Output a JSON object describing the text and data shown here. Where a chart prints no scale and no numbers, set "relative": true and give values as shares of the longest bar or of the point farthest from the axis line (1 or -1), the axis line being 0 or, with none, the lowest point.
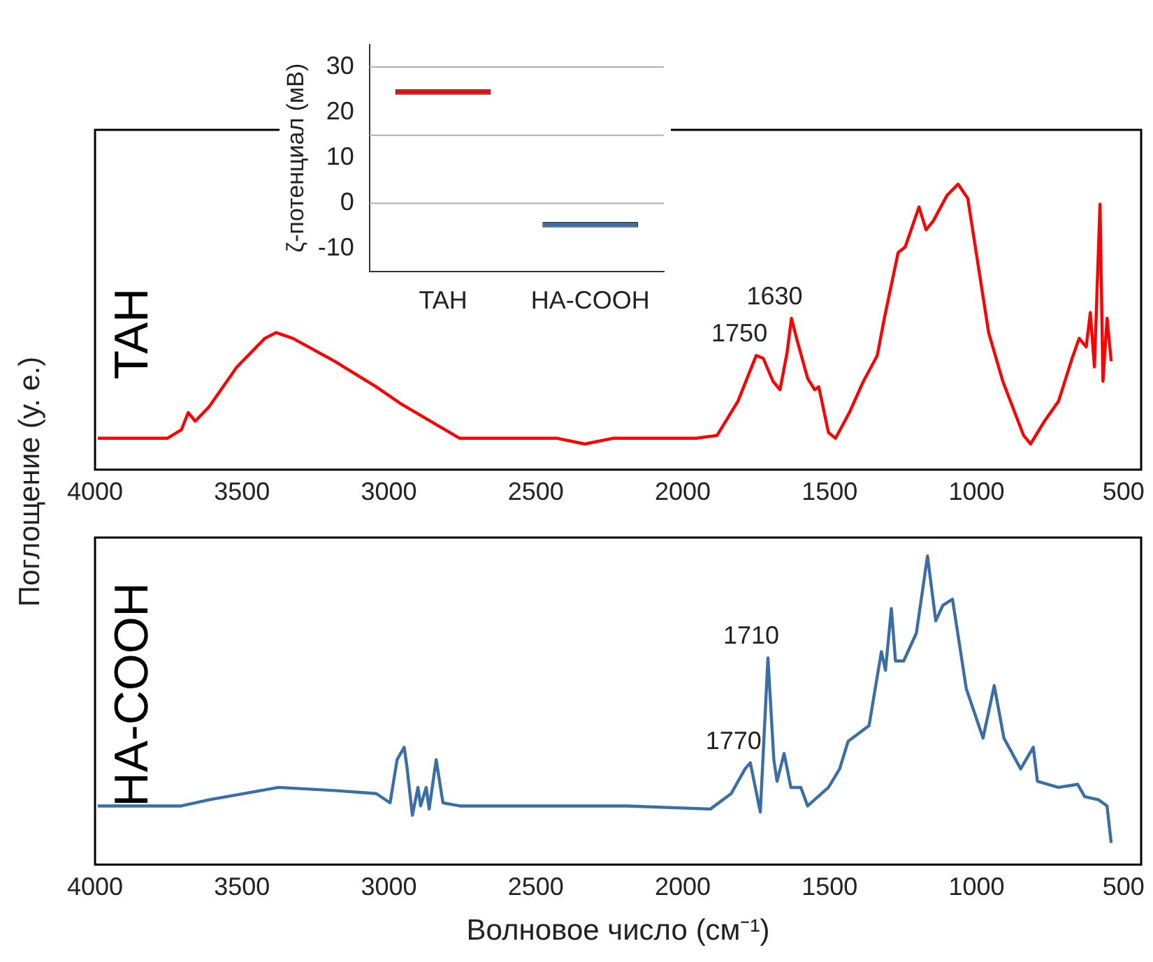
{
  "chart_data": [
    {
      "type": "line",
      "relative": true,
      "xlim": [
        4000,
        440
      ],
      "xticks": [
        4000,
        3500,
        3000,
        2500,
        2000,
        1500,
        1000,
        500
      ],
      "tick_labels": "x",
      "ylabel": "Поглощение (у. е.)",
      "series": [
        {
          "name": "TAH",
          "color": "#ff0000",
          "x": [
            3991,
            3754,
            3706,
            3683,
            3659,
            3612,
            3517,
            3422,
            3384,
            3327,
            3185,
            3043,
            2958,
            2925,
            2759,
            2427,
            2333,
            2238,
            1954,
            1883,
            1812,
            1750,
            1726,
            1693,
            1669,
            1645,
            1630,
            1610,
            1575,
            1551,
            1537,
            1504,
            1480,
            1433,
            1385,
            1338,
            1314,
            1267,
            1243,
            1196,
            1172,
            1148,
            1101,
            1063,
            1030,
            959,
            911,
            840,
            816,
            769,
            721,
            675,
            651,
            627,
            613,
            599,
            580,
            570,
            556,
            542
          ],
          "values": [
            0.11,
            0.11,
            0.14,
            0.2,
            0.17,
            0.22,
            0.36,
            0.46,
            0.48,
            0.46,
            0.38,
            0.29,
            0.23,
            0.21,
            0.11,
            0.11,
            0.09,
            0.11,
            0.11,
            0.12,
            0.24,
            0.4,
            0.39,
            0.31,
            0.28,
            0.41,
            0.53,
            0.45,
            0.32,
            0.28,
            0.29,
            0.13,
            0.11,
            0.2,
            0.31,
            0.4,
            0.53,
            0.76,
            0.78,
            0.92,
            0.84,
            0.87,
            0.96,
            1.0,
            0.95,
            0.48,
            0.31,
            0.12,
            0.09,
            0.17,
            0.24,
            0.39,
            0.46,
            0.43,
            0.55,
            0.36,
            0.93,
            0.31,
            0.53,
            0.38
          ]
        }
      ],
      "annotations": [
        {
          "text": "1750",
          "x": 1750,
          "y": 0.4
        },
        {
          "text": "1630",
          "x": 1630,
          "y": 0.53
        }
      ]
    },
    {
      "type": "bar",
      "categories": [
        "TAH",
        "HA-COOH"
      ],
      "values": [
        1.2,
        1.2
      ],
      "base": [
        23.9,
        -5.3
      ],
      "colors": [
        "#ff0000",
        "#3a6ea5"
      ],
      "ylim": [
        -15,
        35
      ],
      "yticks": [
        -10,
        0,
        10,
        20,
        30
      ],
      "ylabel": "ζ-потенциал (мВ)",
      "ref_lines": [
        {
          "axis": "y",
          "value": 30,
          "color": "#b0b0b0"
        },
        {
          "axis": "y",
          "value": 15,
          "color": "#b0b0b0"
        },
        {
          "axis": "y",
          "value": 0,
          "color": "#b0b0b0"
        }
      ]
    },
    {
      "type": "line",
      "relative": true,
      "xlim": [
        4000,
        440
      ],
      "xticks": [
        4000,
        3500,
        3000,
        2500,
        2000,
        1500,
        1000,
        500
      ],
      "tick_labels": "x",
      "xlabel": "Волновое число (см⁻¹)",
      "series": [
        {
          "name": "HA-COOH",
          "color": "#3a6ea5",
          "x": [
            3991,
            3706,
            3612,
            3375,
            3185,
            3043,
            2996,
            2972,
            2948,
            2939,
            2920,
            2901,
            2892,
            2873,
            2863,
            2839,
            2816,
            2759,
            2190,
            1906,
            1835,
            1788,
            1770,
            1736,
            1710,
            1690,
            1679,
            1655,
            1632,
            1598,
            1575,
            1504,
            1466,
            1437,
            1366,
            1324,
            1310,
            1290,
            1276,
            1248,
            1205,
            1167,
            1139,
            1115,
            1082,
            1035,
            978,
            940,
            907,
            850,
            807,
            793,
            722,
            656,
            632,
            585,
            556,
            542
          ],
          "values": [
            0.19,
            0.19,
            0.21,
            0.25,
            0.24,
            0.23,
            0.2,
            0.34,
            0.38,
            0.32,
            0.16,
            0.25,
            0.19,
            0.25,
            0.18,
            0.34,
            0.2,
            0.19,
            0.19,
            0.18,
            0.23,
            0.31,
            0.33,
            0.17,
            0.67,
            0.34,
            0.27,
            0.36,
            0.25,
            0.25,
            0.19,
            0.25,
            0.31,
            0.4,
            0.45,
            0.69,
            0.63,
            0.83,
            0.66,
            0.66,
            0.75,
            1.0,
            0.79,
            0.84,
            0.86,
            0.57,
            0.41,
            0.58,
            0.41,
            0.31,
            0.38,
            0.27,
            0.25,
            0.26,
            0.22,
            0.21,
            0.19,
            0.07
          ]
        }
      ],
      "annotations": [
        {
          "text": "1770",
          "x": 1770,
          "y": 0.33
        },
        {
          "text": "1710",
          "x": 1710,
          "y": 0.67
        }
      ]
    }
  ]
}
